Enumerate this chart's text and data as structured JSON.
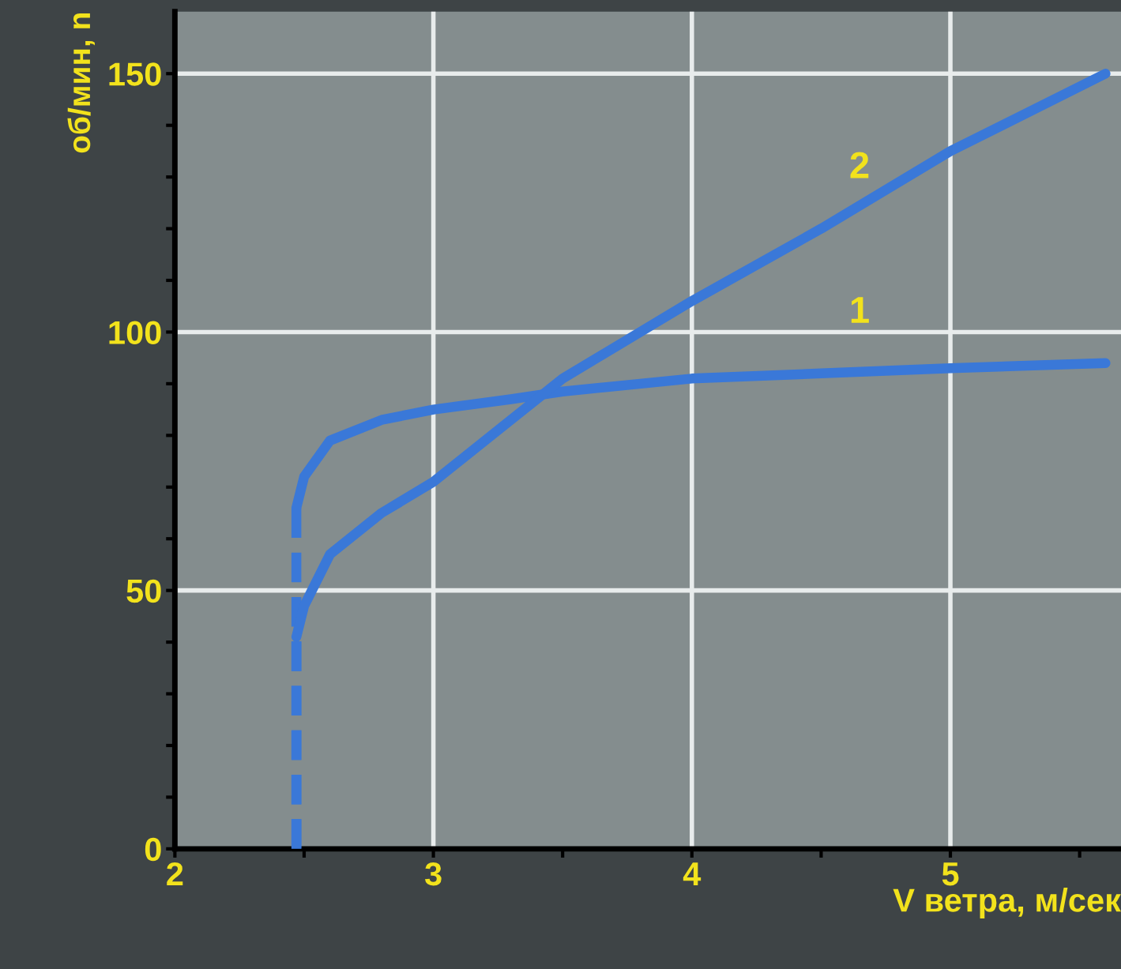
{
  "chart_data": {
    "type": "line",
    "xlabel": "V ветра, м/сек",
    "ylabel": "об/мин, n",
    "xlim": [
      2,
      5.66
    ],
    "ylim": [
      0,
      162
    ],
    "xticks": [
      2,
      {
        "value": 2.5,
        "label": null
      },
      3,
      {
        "value": 3.5,
        "label": null
      },
      4,
      {
        "value": 4.5,
        "label": null
      },
      5,
      {
        "value": 5.5,
        "label": null
      }
    ],
    "yticks": [
      0,
      {
        "value": 10,
        "label": null
      },
      {
        "value": 20,
        "label": null
      },
      {
        "value": 30,
        "label": null
      },
      {
        "value": 40,
        "label": null
      },
      50,
      {
        "value": 60,
        "label": null
      },
      {
        "value": 70,
        "label": null
      },
      {
        "value": 80,
        "label": null
      },
      {
        "value": 90,
        "label": null
      },
      100,
      {
        "value": 110,
        "label": null
      },
      {
        "value": 120,
        "label": null
      },
      {
        "value": 130,
        "label": null
      },
      {
        "value": 140,
        "label": null
      },
      150
    ],
    "grid": true,
    "series": [
      {
        "name": "1",
        "color": "#3a78d8",
        "line_style": "solid",
        "x": [
          2.47,
          2.5,
          2.6,
          2.8,
          3.0,
          3.3,
          3.5,
          4.0,
          4.5,
          5.0,
          5.6
        ],
        "values": [
          66,
          72,
          79,
          83,
          85,
          87,
          88.5,
          91,
          92,
          93,
          94
        ]
      },
      {
        "color": "#3a78d8",
        "line_style": "dashed",
        "x": [
          2.47,
          2.47
        ],
        "values": [
          0,
          66
        ]
      },
      {
        "name": "2",
        "color": "#3a78d8",
        "line_style": "solid",
        "x": [
          2.47,
          2.5,
          2.6,
          2.8,
          3.0,
          3.3,
          3.5,
          4.0,
          4.5,
          5.0,
          5.6
        ],
        "values": [
          41,
          47,
          57,
          65,
          71,
          83,
          91,
          106,
          120,
          135,
          150
        ]
      },
      {
        "color": "#3a78d8",
        "line_style": "dashed",
        "x": [
          2.47,
          2.47
        ],
        "values": [
          0,
          41
        ]
      }
    ]
  }
}
